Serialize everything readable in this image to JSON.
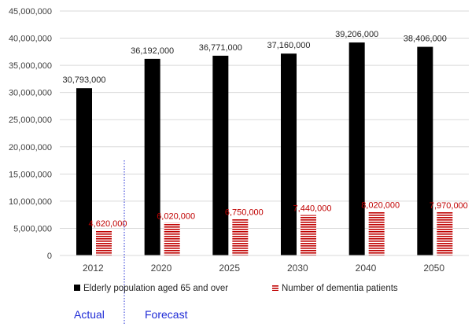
{
  "chart_data": {
    "type": "bar",
    "categories": [
      "2012",
      "2020",
      "2025",
      "2030",
      "2040",
      "2050"
    ],
    "series": [
      {
        "name": "Elderly population aged 65 and over",
        "values": [
          30793000,
          36192000,
          36771000,
          37160000,
          39206000,
          38406000
        ],
        "labels": [
          "30,793,000",
          "36,192,000",
          "36,771,000",
          "37,160,000",
          "39,206,000",
          "38,406,000"
        ],
        "color": "#000000"
      },
      {
        "name": "Number of dementia patients",
        "values": [
          4620000,
          6020000,
          6750000,
          7440000,
          8020000,
          7970000
        ],
        "labels": [
          "4,620,000",
          "6,020,000",
          "6,750,000",
          "7,440,000",
          "8,020,000",
          "7,970,000"
        ],
        "color": "#c00000",
        "pattern": "horizontal-stripes"
      }
    ],
    "ylim": [
      0,
      45000000
    ],
    "yticks": [
      "0",
      "5,000,000",
      "10,000,000",
      "15,000,000",
      "20,000,000",
      "25,000,000",
      "30,000,000",
      "35,000,000",
      "40,000,000",
      "45,000,000"
    ],
    "grid": true,
    "legend_position": "bottom",
    "annotations": {
      "actual": "Actual",
      "forecast": "Forecast",
      "divider_color": "#1f2bd6"
    }
  }
}
